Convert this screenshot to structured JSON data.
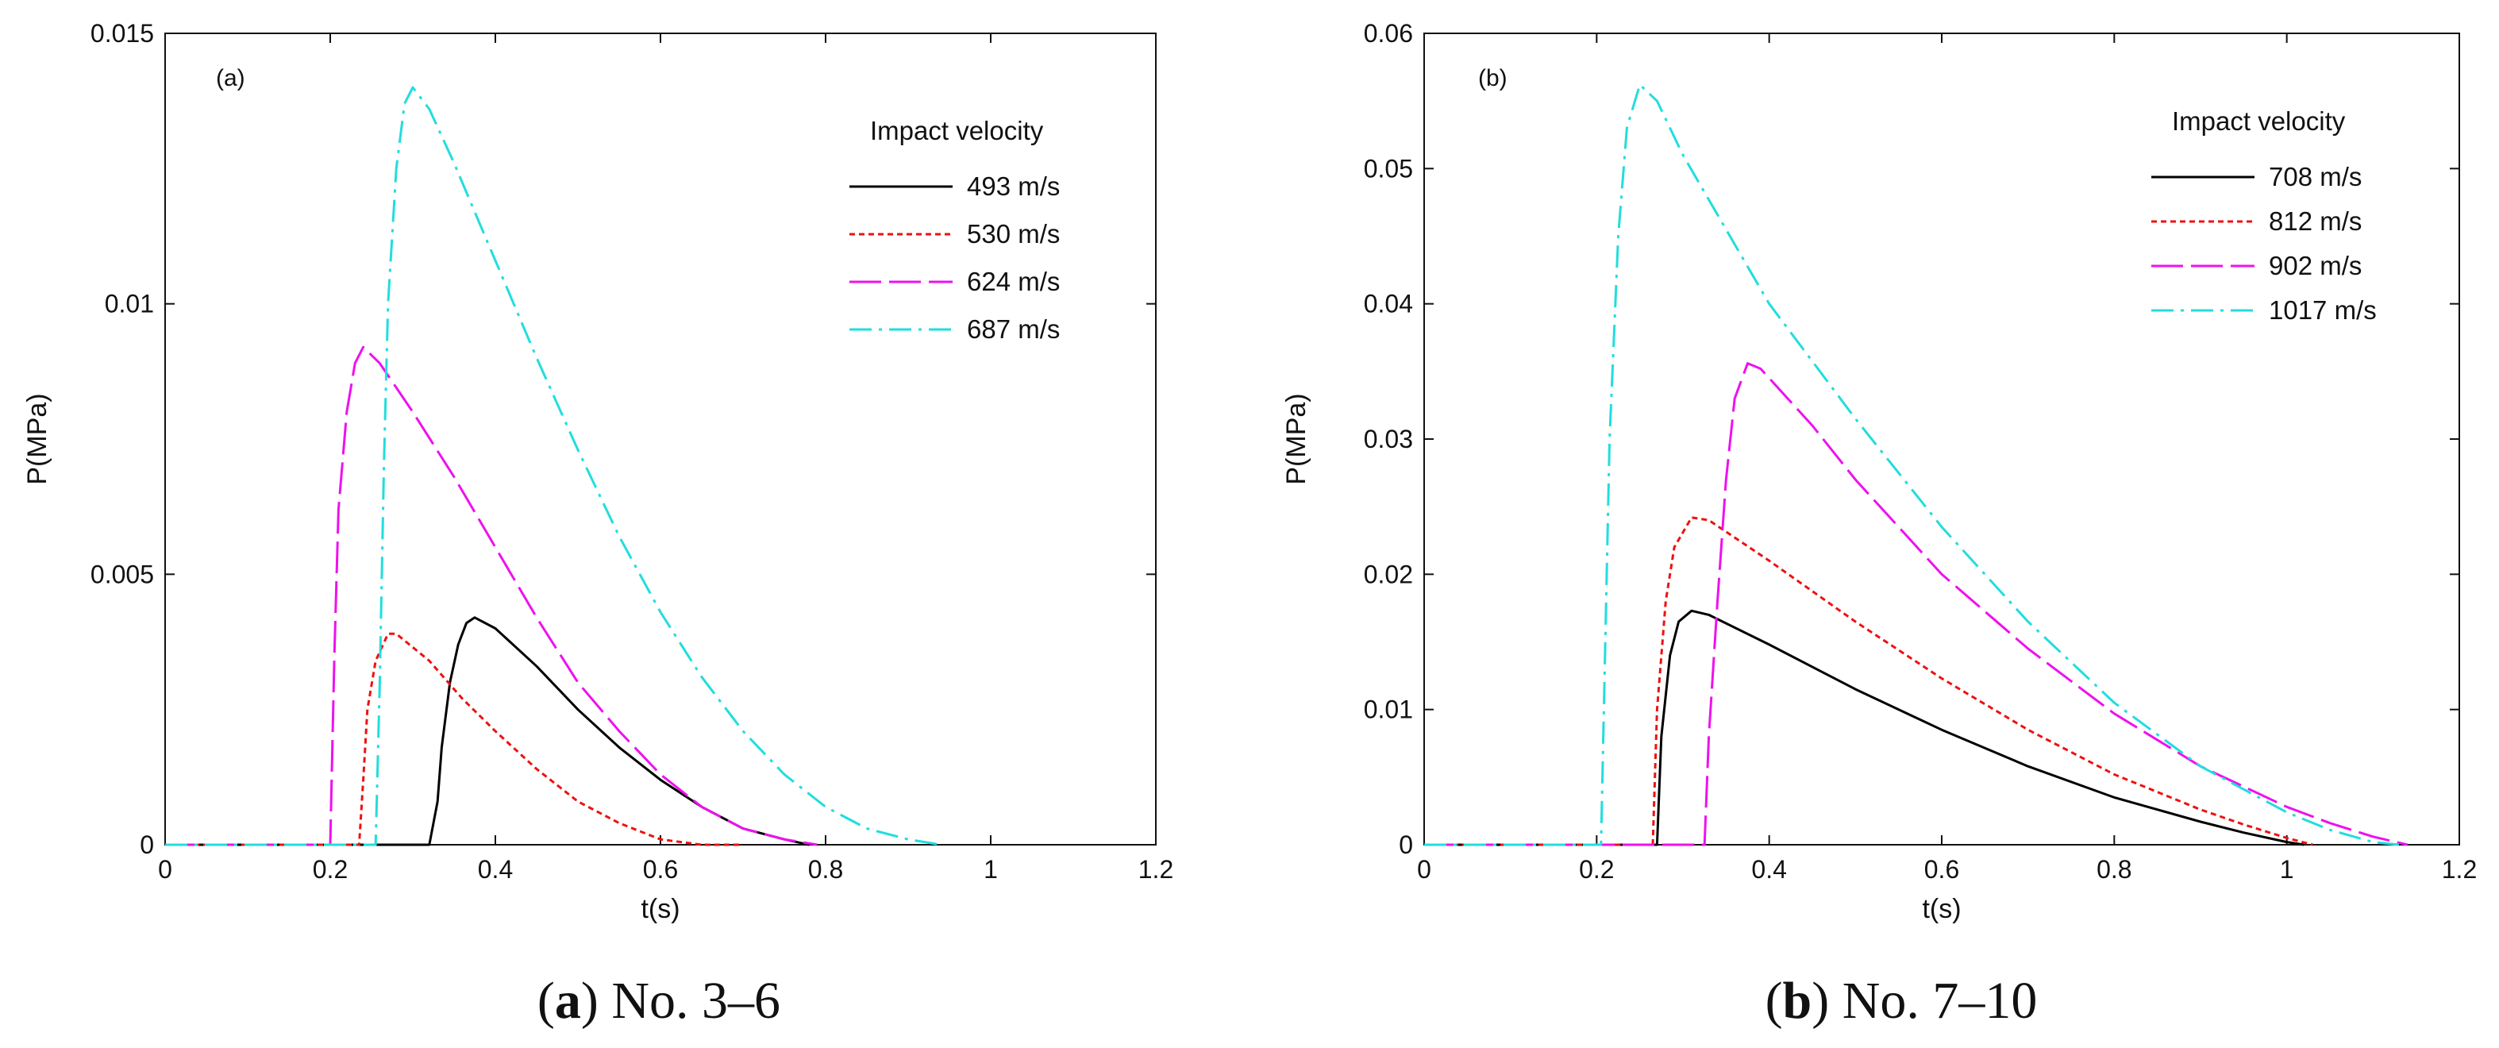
{
  "chart_data": [
    {
      "type": "line",
      "panel_label": "(a)",
      "caption_letter": "a",
      "caption_text": "No. 3–6",
      "xlabel": "t(s)",
      "ylabel": "P(MPa)",
      "xlim": [
        0,
        1.2
      ],
      "ylim": [
        0,
        0.015
      ],
      "xticks": [
        0,
        0.2,
        0.4,
        0.6,
        0.8,
        1,
        1.2
      ],
      "xtick_labels": [
        "0",
        "0.2",
        "0.4",
        "0.6",
        "0.8",
        "1",
        "1.2"
      ],
      "yticks": [
        0,
        0.005,
        0.01,
        0.015
      ],
      "ytick_labels": [
        "0",
        "0.005",
        "0.01",
        "0.015"
      ],
      "legend_title": "Impact velocity",
      "series": [
        {
          "name": "493 m/s",
          "color": "#000000",
          "dash": "solid",
          "points": [
            [
              0.0,
              0
            ],
            [
              0.32,
              0
            ],
            [
              0.33,
              0.0008
            ],
            [
              0.335,
              0.0018
            ],
            [
              0.345,
              0.003
            ],
            [
              0.355,
              0.0037
            ],
            [
              0.365,
              0.0041
            ],
            [
              0.375,
              0.0042
            ],
            [
              0.4,
              0.004
            ],
            [
              0.45,
              0.0033
            ],
            [
              0.5,
              0.0025
            ],
            [
              0.55,
              0.0018
            ],
            [
              0.6,
              0.0012
            ],
            [
              0.65,
              0.0007
            ],
            [
              0.7,
              0.0003
            ],
            [
              0.75,
              0.0001
            ],
            [
              0.78,
              0
            ]
          ]
        },
        {
          "name": "530 m/s",
          "color": "#ee1111",
          "dash": "dotted",
          "points": [
            [
              0.0,
              0
            ],
            [
              0.235,
              0
            ],
            [
              0.24,
              0.0012
            ],
            [
              0.245,
              0.0025
            ],
            [
              0.255,
              0.0034
            ],
            [
              0.27,
              0.0039
            ],
            [
              0.28,
              0.0039
            ],
            [
              0.32,
              0.0034
            ],
            [
              0.36,
              0.0027
            ],
            [
              0.4,
              0.0021
            ],
            [
              0.45,
              0.0014
            ],
            [
              0.5,
              0.0008
            ],
            [
              0.55,
              0.0004
            ],
            [
              0.6,
              0.0001
            ],
            [
              0.65,
              0
            ],
            [
              0.7,
              0
            ]
          ]
        },
        {
          "name": "624 m/s",
          "color": "#ee11ee",
          "dash": "longdash",
          "points": [
            [
              0.0,
              0
            ],
            [
              0.2,
              0
            ],
            [
              0.205,
              0.0035
            ],
            [
              0.21,
              0.0062
            ],
            [
              0.22,
              0.008
            ],
            [
              0.23,
              0.0089
            ],
            [
              0.24,
              0.0092
            ],
            [
              0.26,
              0.0089
            ],
            [
              0.3,
              0.008
            ],
            [
              0.35,
              0.0068
            ],
            [
              0.4,
              0.0055
            ],
            [
              0.45,
              0.0042
            ],
            [
              0.5,
              0.003
            ],
            [
              0.55,
              0.0021
            ],
            [
              0.6,
              0.0013
            ],
            [
              0.65,
              0.0007
            ],
            [
              0.7,
              0.0003
            ],
            [
              0.75,
              0.0001
            ],
            [
              0.79,
              0
            ]
          ]
        },
        {
          "name": "687 m/s",
          "color": "#22dddd",
          "dash": "dashdot",
          "points": [
            [
              0.0,
              0
            ],
            [
              0.255,
              0
            ],
            [
              0.26,
              0.003
            ],
            [
              0.265,
              0.007
            ],
            [
              0.27,
              0.01
            ],
            [
              0.28,
              0.0125
            ],
            [
              0.29,
              0.0137
            ],
            [
              0.3,
              0.014
            ],
            [
              0.32,
              0.0136
            ],
            [
              0.35,
              0.0126
            ],
            [
              0.4,
              0.0108
            ],
            [
              0.45,
              0.009
            ],
            [
              0.5,
              0.0073
            ],
            [
              0.55,
              0.0057
            ],
            [
              0.6,
              0.0043
            ],
            [
              0.65,
              0.0031
            ],
            [
              0.7,
              0.0021
            ],
            [
              0.75,
              0.0013
            ],
            [
              0.8,
              0.0007
            ],
            [
              0.85,
              0.0003
            ],
            [
              0.9,
              0.0001
            ],
            [
              0.94,
              0
            ]
          ]
        }
      ]
    },
    {
      "type": "line",
      "panel_label": "(b)",
      "caption_letter": "b",
      "caption_text": "No. 7–10",
      "xlabel": "t(s)",
      "ylabel": "P(MPa)",
      "xlim": [
        0,
        1.2
      ],
      "ylim": [
        0,
        0.06
      ],
      "xticks": [
        0,
        0.2,
        0.4,
        0.6,
        0.8,
        1,
        1.2
      ],
      "xtick_labels": [
        "0",
        "0.2",
        "0.4",
        "0.6",
        "0.8",
        "1",
        "1.2"
      ],
      "yticks": [
        0,
        0.01,
        0.02,
        0.03,
        0.04,
        0.05,
        0.06
      ],
      "ytick_labels": [
        "0",
        "0.01",
        "0.02",
        "0.03",
        "0.04",
        "0.05",
        "0.06"
      ],
      "legend_title": "Impact velocity",
      "series": [
        {
          "name": "708 m/s",
          "color": "#000000",
          "dash": "solid",
          "points": [
            [
              0.0,
              0
            ],
            [
              0.27,
              0
            ],
            [
              0.275,
              0.008
            ],
            [
              0.285,
              0.014
            ],
            [
              0.295,
              0.0165
            ],
            [
              0.31,
              0.0173
            ],
            [
              0.33,
              0.017
            ],
            [
              0.4,
              0.0148
            ],
            [
              0.5,
              0.0115
            ],
            [
              0.6,
              0.0085
            ],
            [
              0.7,
              0.0058
            ],
            [
              0.8,
              0.0035
            ],
            [
              0.9,
              0.0017
            ],
            [
              0.95,
              0.0009
            ],
            [
              1.0,
              0.0002
            ],
            [
              1.02,
              0
            ]
          ]
        },
        {
          "name": "812 m/s",
          "color": "#ee1111",
          "dash": "dotted",
          "points": [
            [
              0.0,
              0
            ],
            [
              0.265,
              0
            ],
            [
              0.27,
              0.01
            ],
            [
              0.28,
              0.018
            ],
            [
              0.29,
              0.022
            ],
            [
              0.31,
              0.0242
            ],
            [
              0.33,
              0.024
            ],
            [
              0.4,
              0.021
            ],
            [
              0.5,
              0.0165
            ],
            [
              0.6,
              0.0123
            ],
            [
              0.7,
              0.0085
            ],
            [
              0.8,
              0.0052
            ],
            [
              0.9,
              0.0026
            ],
            [
              0.95,
              0.0015
            ],
            [
              1.0,
              0.0005
            ],
            [
              1.03,
              0
            ]
          ]
        },
        {
          "name": "902 m/s",
          "color": "#ee11ee",
          "dash": "longdash",
          "points": [
            [
              0.0,
              0
            ],
            [
              0.325,
              0
            ],
            [
              0.33,
              0.008
            ],
            [
              0.34,
              0.018
            ],
            [
              0.35,
              0.027
            ],
            [
              0.36,
              0.033
            ],
            [
              0.375,
              0.0356
            ],
            [
              0.39,
              0.0352
            ],
            [
              0.45,
              0.031
            ],
            [
              0.5,
              0.027
            ],
            [
              0.6,
              0.02
            ],
            [
              0.7,
              0.0145
            ],
            [
              0.8,
              0.0097
            ],
            [
              0.9,
              0.0058
            ],
            [
              1.0,
              0.0028
            ],
            [
              1.05,
              0.0016
            ],
            [
              1.1,
              0.0006
            ],
            [
              1.14,
              0
            ]
          ]
        },
        {
          "name": "1017 m/s",
          "color": "#22dddd",
          "dash": "dashdot",
          "points": [
            [
              0.0,
              0
            ],
            [
              0.205,
              0
            ],
            [
              0.21,
              0.015
            ],
            [
              0.215,
              0.03
            ],
            [
              0.225,
              0.045
            ],
            [
              0.235,
              0.053
            ],
            [
              0.25,
              0.0562
            ],
            [
              0.27,
              0.055
            ],
            [
              0.3,
              0.051
            ],
            [
              0.35,
              0.0455
            ],
            [
              0.4,
              0.04
            ],
            [
              0.5,
              0.0315
            ],
            [
              0.6,
              0.0235
            ],
            [
              0.7,
              0.0165
            ],
            [
              0.8,
              0.0105
            ],
            [
              0.9,
              0.0058
            ],
            [
              1.0,
              0.0024
            ],
            [
              1.05,
              0.0011
            ],
            [
              1.1,
              0.0002
            ],
            [
              1.13,
              0
            ]
          ]
        }
      ]
    }
  ]
}
